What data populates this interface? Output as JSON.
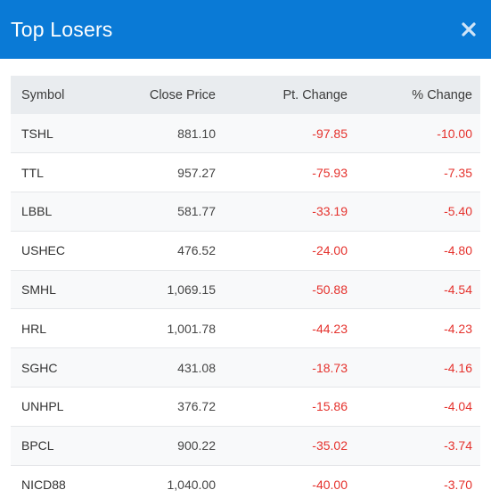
{
  "header": {
    "title": "Top Losers",
    "close_icon": "close-icon"
  },
  "table": {
    "columns": [
      "Symbol",
      "Close Price",
      "Pt. Change",
      "% Change"
    ],
    "rows": [
      {
        "symbol": "TSHL",
        "close": "881.10",
        "pt": "-97.85",
        "pct": "-10.00"
      },
      {
        "symbol": "TTL",
        "close": "957.27",
        "pt": "-75.93",
        "pct": "-7.35"
      },
      {
        "symbol": "LBBL",
        "close": "581.77",
        "pt": "-33.19",
        "pct": "-5.40"
      },
      {
        "symbol": "USHEC",
        "close": "476.52",
        "pt": "-24.00",
        "pct": "-4.80"
      },
      {
        "symbol": "SMHL",
        "close": "1,069.15",
        "pt": "-50.88",
        "pct": "-4.54"
      },
      {
        "symbol": "HRL",
        "close": "1,001.78",
        "pt": "-44.23",
        "pct": "-4.23"
      },
      {
        "symbol": "SGHC",
        "close": "431.08",
        "pt": "-18.73",
        "pct": "-4.16"
      },
      {
        "symbol": "UNHPL",
        "close": "376.72",
        "pt": "-15.86",
        "pct": "-4.04"
      },
      {
        "symbol": "BPCL",
        "close": "900.22",
        "pt": "-35.02",
        "pct": "-3.74"
      },
      {
        "symbol": "NICD88",
        "close": "1,040.00",
        "pt": "-40.00",
        "pct": "-3.70"
      }
    ]
  },
  "colors": {
    "header_bg": "#0a7ad6",
    "negative": "#e5322d"
  }
}
